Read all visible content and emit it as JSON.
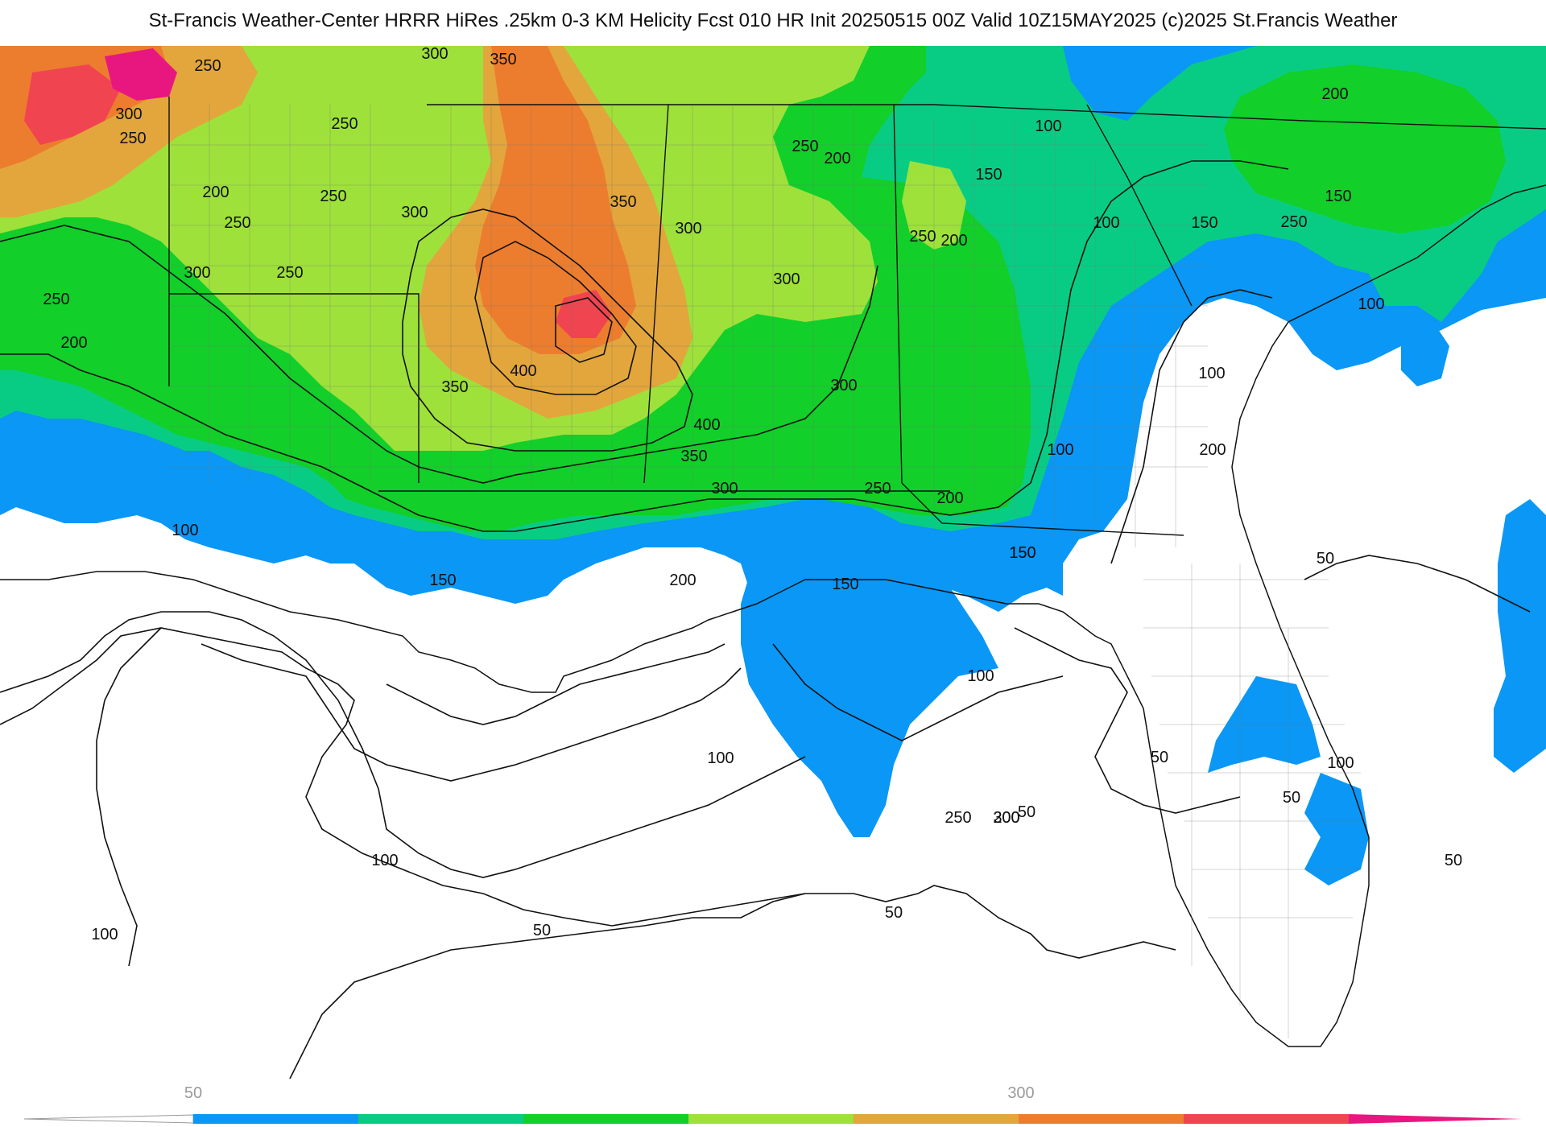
{
  "header": {
    "title": "St-Francis Weather-Center HRRR HiRes .25km 0-3 KM Helicity Fcst 010 HR Init 20250515 00Z  Valid 10Z15MAY2025    (c)2025 St.Francis Weather"
  },
  "map": {
    "contour_labels": [
      "50",
      "100",
      "150",
      "200",
      "250",
      "300",
      "350",
      "400"
    ],
    "labels": [
      {
        "t": "300"
      },
      {
        "t": "350"
      },
      {
        "t": "250"
      },
      {
        "t": "250"
      },
      {
        "t": "300"
      },
      {
        "t": "250"
      },
      {
        "t": "200"
      },
      {
        "t": "250"
      },
      {
        "t": "300"
      },
      {
        "t": "250"
      },
      {
        "t": "300"
      },
      {
        "t": "250"
      },
      {
        "t": "250"
      },
      {
        "t": "200"
      },
      {
        "t": "350"
      },
      {
        "t": "300"
      },
      {
        "t": "250"
      },
      {
        "t": "200"
      },
      {
        "t": "150"
      },
      {
        "t": "200"
      },
      {
        "t": "250"
      },
      {
        "t": "300"
      },
      {
        "t": "300"
      },
      {
        "t": "400"
      },
      {
        "t": "350"
      },
      {
        "t": "400"
      },
      {
        "t": "350"
      },
      {
        "t": "300"
      },
      {
        "t": "250"
      },
      {
        "t": "200"
      },
      {
        "t": "150"
      },
      {
        "t": "100"
      },
      {
        "t": "200"
      },
      {
        "t": "100"
      },
      {
        "t": "150"
      },
      {
        "t": "250"
      },
      {
        "t": "150"
      },
      {
        "t": "100"
      },
      {
        "t": "100"
      },
      {
        "t": "200"
      },
      {
        "t": "150"
      },
      {
        "t": "100"
      },
      {
        "t": "150"
      },
      {
        "t": "100"
      },
      {
        "t": "100"
      },
      {
        "t": "200"
      },
      {
        "t": "150"
      },
      {
        "t": "100"
      },
      {
        "t": "100"
      },
      {
        "t": "50"
      },
      {
        "t": "50"
      },
      {
        "t": "50"
      },
      {
        "t": "50"
      },
      {
        "t": "100"
      },
      {
        "t": "50"
      },
      {
        "t": "50"
      },
      {
        "t": "50"
      },
      {
        "t": "200"
      },
      {
        "t": "300"
      },
      {
        "t": "250"
      },
      {
        "t": "100"
      }
    ]
  },
  "legend": {
    "tick_labels": [
      "50",
      "300"
    ],
    "colors": [
      "#ffffff",
      "#0a97f5",
      "#09cc84",
      "#12cf2a",
      "#9ee13b",
      "#e3a63c",
      "#ec7d2e",
      "#f04450",
      "#e8177f"
    ]
  },
  "colors": {
    "blue": "#0a97f5",
    "teal": "#09cc84",
    "green": "#12cf2a",
    "lightgreen": "#9ee13b",
    "yelloworange": "#e3a63c",
    "orange": "#ec7d2e",
    "red": "#f04450",
    "magenta": "#e8177f"
  }
}
